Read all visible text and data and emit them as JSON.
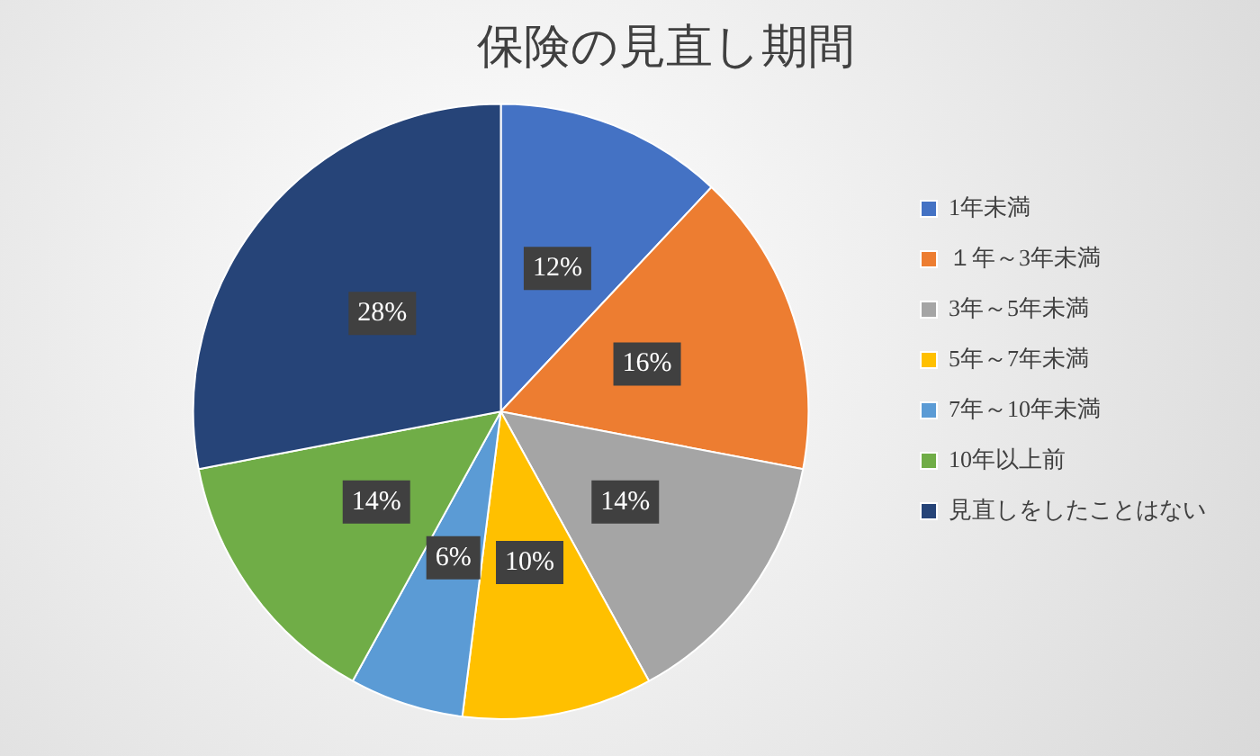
{
  "chart_data": {
    "type": "pie",
    "title": "保険の見直し期間",
    "categories": [
      "1年未満",
      "１年～3年未満",
      "3年～5年未満",
      "5年～7年未満",
      "7年～10年未満",
      "10年以上前",
      "見直しをしたことはない"
    ],
    "values": [
      12,
      16,
      14,
      10,
      6,
      14,
      28
    ],
    "colors": [
      "#4472c4",
      "#ed7d31",
      "#a5a5a5",
      "#ffc000",
      "#5b9bd5",
      "#70ad47",
      "#264478"
    ],
    "value_labels": [
      "12%",
      "16%",
      "14%",
      "10%",
      "6%",
      "14%",
      "28%"
    ],
    "legend": "right"
  }
}
